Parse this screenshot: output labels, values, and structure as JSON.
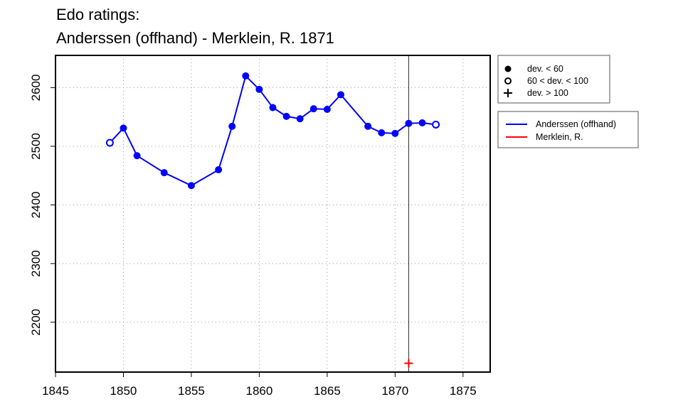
{
  "chart_data": {
    "type": "line",
    "title_line1": "Edo ratings:",
    "title_line2": "Anderssen (offhand) - Merklein, R. 1871",
    "xlabel": "",
    "ylabel": "",
    "xlim": [
      1845,
      1877
    ],
    "ylim": [
      2115,
      2655
    ],
    "x_ticks": [
      1845,
      1850,
      1855,
      1860,
      1865,
      1870,
      1875
    ],
    "y_ticks": [
      2200,
      2300,
      2400,
      2500,
      2600
    ],
    "grid": "dotted",
    "marker_year": 1871,
    "legend_markers": [
      {
        "symbol": "filled-circle",
        "label": "dev. < 60"
      },
      {
        "symbol": "open-circle",
        "label": "60 < dev. < 100"
      },
      {
        "symbol": "plus",
        "label": "dev. > 100"
      }
    ],
    "series": [
      {
        "name": "Anderssen (offhand)",
        "color": "#0000ff",
        "points": [
          {
            "x": 1849,
            "y": 2506,
            "dev": "mid"
          },
          {
            "x": 1850,
            "y": 2531,
            "dev": "low"
          },
          {
            "x": 1851,
            "y": 2484,
            "dev": "low"
          },
          {
            "x": 1853,
            "y": 2455,
            "dev": "low"
          },
          {
            "x": 1855,
            "y": 2433,
            "dev": "low"
          },
          {
            "x": 1857,
            "y": 2460,
            "dev": "low"
          },
          {
            "x": 1858,
            "y": 2534,
            "dev": "low"
          },
          {
            "x": 1859,
            "y": 2620,
            "dev": "low"
          },
          {
            "x": 1860,
            "y": 2597,
            "dev": "low"
          },
          {
            "x": 1861,
            "y": 2566,
            "dev": "low"
          },
          {
            "x": 1862,
            "y": 2551,
            "dev": "low"
          },
          {
            "x": 1863,
            "y": 2547,
            "dev": "low"
          },
          {
            "x": 1864,
            "y": 2564,
            "dev": "low"
          },
          {
            "x": 1865,
            "y": 2563,
            "dev": "low"
          },
          {
            "x": 1866,
            "y": 2588,
            "dev": "low"
          },
          {
            "x": 1868,
            "y": 2534,
            "dev": "low"
          },
          {
            "x": 1869,
            "y": 2523,
            "dev": "low"
          },
          {
            "x": 1870,
            "y": 2522,
            "dev": "low"
          },
          {
            "x": 1871,
            "y": 2539,
            "dev": "low"
          },
          {
            "x": 1872,
            "y": 2540,
            "dev": "low"
          },
          {
            "x": 1873,
            "y": 2537,
            "dev": "mid"
          }
        ]
      },
      {
        "name": "Merklein, R.",
        "color": "#ff0000",
        "points": [
          {
            "x": 1871,
            "y": 2130,
            "dev": "high"
          }
        ]
      }
    ]
  }
}
